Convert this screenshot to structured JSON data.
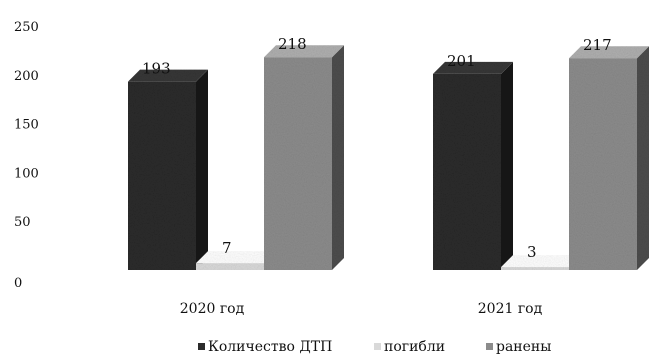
{
  "chart_data": {
    "type": "bar",
    "style": "3d-column",
    "categories": [
      "2020 год",
      "2021 год"
    ],
    "series": [
      {
        "name": "Количество ДТП",
        "values": [
          193,
          201
        ],
        "color": "#2b2b2b"
      },
      {
        "name": "погибли",
        "values": [
          7,
          3
        ],
        "color": "#d9d9d9"
      },
      {
        "name": "ранены",
        "values": [
          218,
          217
        ],
        "color": "#8c8c8c"
      }
    ],
    "yticks": [
      0,
      50,
      100,
      150,
      200,
      250
    ],
    "ylim": [
      0,
      250
    ],
    "grid": false,
    "legend_position": "bottom"
  }
}
